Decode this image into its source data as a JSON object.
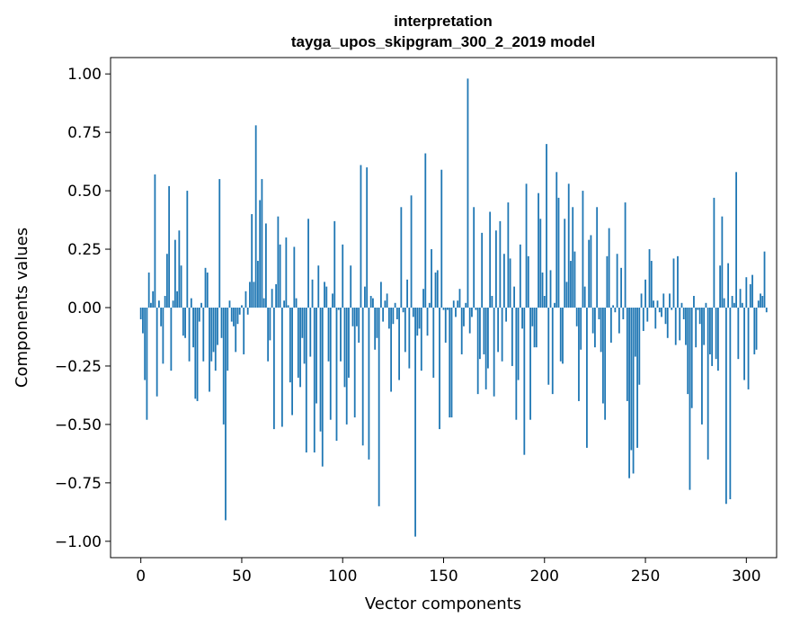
{
  "chart_data": {
    "type": "bar",
    "title": "interpretation",
    "subtitle": "tayga_upos_skipgram_300_2_2019 model",
    "xlabel": "Vector components",
    "ylabel": "Components values",
    "xlim": [
      -15,
      315
    ],
    "ylim": [
      -1.07,
      1.07
    ],
    "xticks": [
      0,
      50,
      100,
      150,
      200,
      250,
      300
    ],
    "yticks": [
      -1.0,
      -0.75,
      -0.5,
      -0.25,
      0.0,
      0.25,
      0.5,
      0.75,
      1.0
    ],
    "ytick_labels": [
      "−1.00",
      "−0.75",
      "−0.50",
      "−0.25",
      "0.00",
      "0.25",
      "0.50",
      "0.75",
      "1.00"
    ],
    "grid": false,
    "bar_color": "#1f77b4",
    "values": [
      -0.05,
      -0.11,
      -0.31,
      -0.48,
      0.15,
      0.02,
      0.07,
      0.57,
      -0.38,
      0.03,
      -0.08,
      -0.24,
      0.05,
      0.23,
      0.52,
      -0.27,
      0.03,
      0.29,
      0.07,
      0.33,
      0.18,
      -0.12,
      -0.13,
      0.5,
      -0.23,
      0.04,
      -0.17,
      -0.39,
      -0.4,
      -0.06,
      0.02,
      -0.23,
      0.17,
      0.15,
      -0.36,
      -0.23,
      -0.19,
      -0.27,
      -0.16,
      0.55,
      -0.13,
      -0.5,
      -0.91,
      -0.27,
      0.03,
      -0.06,
      -0.08,
      -0.19,
      -0.07,
      -0.03,
      0.01,
      -0.2,
      0.07,
      -0.03,
      0.11,
      0.4,
      0.11,
      0.78,
      0.2,
      0.46,
      0.55,
      0.04,
      0.36,
      -0.23,
      -0.14,
      0.08,
      -0.52,
      0.1,
      0.39,
      0.27,
      -0.51,
      0.03,
      0.3,
      0.01,
      -0.32,
      -0.46,
      0.26,
      0.04,
      -0.3,
      -0.34,
      -0.13,
      -0.24,
      -0.62,
      0.38,
      -0.21,
      0.12,
      -0.62,
      -0.41,
      0.18,
      -0.53,
      -0.68,
      0.11,
      0.09,
      -0.23,
      -0.48,
      0.06,
      0.37,
      -0.57,
      -0.01,
      -0.23,
      0.27,
      -0.34,
      -0.5,
      -0.3,
      0.18,
      -0.08,
      -0.47,
      -0.08,
      -0.15,
      0.61,
      -0.59,
      0.09,
      0.6,
      -0.65,
      0.05,
      0.04,
      -0.18,
      -0.13,
      -0.85,
      0.11,
      -0.06,
      0.03,
      0.06,
      -0.09,
      -0.36,
      -0.07,
      0.02,
      -0.05,
      -0.31,
      0.43,
      -0.02,
      -0.19,
      0.12,
      -0.26,
      0.48,
      -0.04,
      -0.98,
      -0.12,
      -0.09,
      -0.27,
      0.08,
      0.66,
      -0.12,
      0.02,
      0.25,
      -0.3,
      0.15,
      0.16,
      -0.52,
      0.59,
      -0.01,
      -0.15,
      -0.01,
      -0.47,
      -0.47,
      0.03,
      -0.04,
      0.03,
      0.08,
      -0.2,
      -0.08,
      0.02,
      0.98,
      -0.11,
      -0.04,
      0.43,
      -0.01,
      -0.37,
      -0.22,
      0.32,
      -0.2,
      -0.35,
      -0.26,
      0.41,
      0.05,
      -0.38,
      0.33,
      -0.19,
      0.37,
      -0.23,
      0.23,
      -0.06,
      0.45,
      0.21,
      -0.25,
      0.09,
      -0.48,
      -0.31,
      0.27,
      -0.09,
      -0.63,
      0.53,
      0.22,
      -0.48,
      -0.08,
      -0.17,
      -0.17,
      0.49,
      0.38,
      0.15,
      0.05,
      0.7,
      -0.33,
      0.16,
      -0.37,
      0.02,
      0.58,
      0.47,
      -0.23,
      -0.24,
      0.38,
      0.11,
      0.53,
      0.2,
      0.43,
      0.24,
      -0.08,
      -0.4,
      -0.18,
      0.5,
      0.09,
      -0.6,
      0.29,
      0.31,
      -0.11,
      -0.17,
      0.43,
      -0.05,
      -0.19,
      -0.41,
      -0.48,
      0.22,
      0.34,
      -0.15,
      0.01,
      -0.02,
      0.23,
      -0.11,
      0.17,
      -0.05,
      0.45,
      -0.4,
      -0.73,
      -0.61,
      -0.71,
      -0.21,
      -0.6,
      -0.33,
      0.06,
      -0.1,
      0.12,
      -0.06,
      0.25,
      0.2,
      0.03,
      -0.09,
      0.03,
      -0.02,
      -0.04,
      0.06,
      -0.07,
      -0.13,
      0.06,
      -0.01,
      0.21,
      -0.16,
      0.22,
      -0.14,
      0.02,
      -0.05,
      -0.16,
      -0.37,
      -0.78,
      -0.43,
      0.05,
      -0.17,
      -0.01,
      -0.07,
      -0.5,
      -0.16,
      0.02,
      -0.65,
      -0.2,
      -0.25,
      0.47,
      -0.22,
      -0.27,
      0.18,
      0.39,
      0.04,
      -0.84,
      0.19,
      -0.82,
      0.05,
      0.02,
      0.58,
      -0.22,
      0.08,
      0.02,
      -0.31,
      0.13,
      -0.35,
      0.1,
      0.14,
      -0.2,
      -0.18,
      0.03,
      0.06,
      0.05,
      0.24,
      -0.02
    ],
    "annotations": []
  }
}
